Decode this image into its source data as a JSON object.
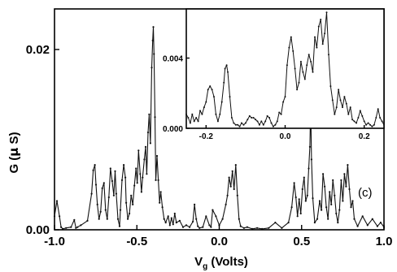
{
  "chart_data": [
    {
      "type": "line",
      "xlabel": {
        "main": "V",
        "sub": "g",
        "rest": " (Volts)"
      },
      "ylabel": {
        "main": "G (",
        "mu": "μ",
        "rest": " S)"
      },
      "panel_label": "(c)",
      "xlim": [
        -1.0,
        1.0
      ],
      "ylim": [
        0.0,
        0.0245
      ],
      "xticks": [
        -1.0,
        -0.5,
        0.0,
        0.5,
        1.0
      ],
      "xtick_labels": [
        "-1.0",
        "-0.5",
        "0.0",
        "0.5",
        "1.0"
      ],
      "yticks": [
        0.0,
        0.02
      ],
      "ytick_labels": [
        "0.00",
        "0.02"
      ],
      "series": [
        {
          "x": [
            -1.0,
            -0.985,
            -0.97,
            -0.96,
            -0.95,
            -0.93,
            -0.9,
            -0.88,
            -0.87,
            -0.86,
            -0.84,
            -0.8,
            -0.775,
            -0.765,
            -0.755,
            -0.748,
            -0.74,
            -0.73,
            -0.72,
            -0.71,
            -0.7,
            -0.69,
            -0.68,
            -0.67,
            -0.66,
            -0.65,
            -0.64,
            -0.632,
            -0.625,
            -0.615,
            -0.605,
            -0.6,
            -0.59,
            -0.58,
            -0.57,
            -0.565,
            -0.555,
            -0.545,
            -0.535,
            -0.525,
            -0.515,
            -0.505,
            -0.498,
            -0.49,
            -0.48,
            -0.472,
            -0.465,
            -0.455,
            -0.447,
            -0.44,
            -0.432,
            -0.425,
            -0.418,
            -0.41,
            -0.404,
            -0.4,
            -0.396,
            -0.39,
            -0.385,
            -0.378,
            -0.37,
            -0.362,
            -0.355,
            -0.345,
            -0.335,
            -0.325,
            -0.31,
            -0.3,
            -0.29,
            -0.28,
            -0.27,
            -0.26,
            -0.24,
            -0.22,
            -0.2,
            -0.18,
            -0.16,
            -0.15,
            -0.14,
            -0.13,
            -0.12,
            -0.1,
            -0.08,
            -0.06,
            -0.05,
            -0.04,
            -0.02,
            0.0,
            0.02,
            0.04,
            0.05,
            0.06,
            0.07,
            0.08,
            0.09,
            0.1,
            0.11,
            0.12,
            0.13,
            0.15,
            0.17,
            0.2,
            0.23,
            0.26,
            0.3,
            0.34,
            0.38,
            0.42,
            0.44,
            0.455,
            0.465,
            0.475,
            0.485,
            0.495,
            0.505,
            0.515,
            0.525,
            0.535,
            0.543,
            0.55,
            0.555,
            0.56,
            0.568,
            0.58,
            0.595,
            0.61,
            0.62,
            0.63,
            0.64,
            0.65,
            0.66,
            0.67,
            0.68,
            0.69,
            0.7,
            0.71,
            0.72,
            0.73,
            0.74,
            0.75,
            0.76,
            0.77,
            0.78,
            0.79,
            0.8,
            0.81,
            0.82,
            0.84,
            0.87,
            0.9,
            0.93,
            0.96,
            0.98,
            1.0
          ],
          "y": [
            0.0015,
            0.0032,
            0.0015,
            0.0003,
            0.0001,
            0.0002,
            0.0003,
            0.0011,
            0.0002,
            0.0003,
            0.0005,
            0.001,
            0.004,
            0.0066,
            0.0072,
            0.005,
            0.0028,
            0.0012,
            0.002,
            0.0046,
            0.0052,
            0.0022,
            0.0012,
            0.0036,
            0.0068,
            0.0054,
            0.0038,
            0.0065,
            0.004,
            0.0012,
            0.0004,
            0.0022,
            0.0055,
            0.0072,
            0.0058,
            0.003,
            0.0012,
            0.0018,
            0.0038,
            0.0028,
            0.0049,
            0.0068,
            0.0052,
            0.0088,
            0.0062,
            0.0042,
            0.0058,
            0.0078,
            0.0092,
            0.0062,
            0.0108,
            0.0128,
            0.0096,
            0.018,
            0.021,
            0.0225,
            0.0195,
            0.0125,
            0.0055,
            0.0082,
            0.0055,
            0.003,
            0.0042,
            0.0025,
            0.0012,
            0.0008,
            0.0015,
            0.0005,
            0.0013,
            0.0006,
            0.0018,
            0.0008,
            0.001,
            0.0003,
            0.0005,
            0.0003,
            0.0009,
            0.0028,
            0.0012,
            0.0004,
            0.0002,
            0.0003,
            0.0015,
            0.0005,
            0.0003,
            0.0022,
            0.0015,
            0.0005,
            0.0012,
            0.0028,
            0.0038,
            0.0058,
            0.0048,
            0.0065,
            0.0045,
            0.0072,
            0.0038,
            0.0012,
            0.0004,
            0.0002,
            0.0003,
            0.0001,
            0.0002,
            0.0001,
            0.0002,
            0.0008,
            0.0002,
            0.0008,
            0.0025,
            0.0052,
            0.0036,
            0.0015,
            0.0034,
            0.0018,
            0.0045,
            0.0058,
            0.0032,
            0.0038,
            0.0068,
            0.0092,
            0.0138,
            0.0078,
            0.0035,
            0.0008,
            0.0012,
            0.0032,
            0.0022,
            0.0062,
            0.0048,
            0.0025,
            0.0012,
            0.0042,
            0.0028,
            0.0055,
            0.0038,
            0.0018,
            0.0008,
            0.0022,
            0.0055,
            0.0032,
            0.0062,
            0.0048,
            0.0072,
            0.0045,
            0.0025,
            0.0032,
            0.0012,
            0.0004,
            0.0015,
            0.0005,
            0.0012,
            0.0004,
            0.0008,
            0.0003
          ]
        }
      ]
    },
    {
      "type": "line",
      "xlim": [
        -0.25,
        0.25
      ],
      "ylim": [
        0.0,
        0.0068
      ],
      "xticks": [
        -0.2,
        0.0,
        0.2
      ],
      "xtick_labels": [
        "-0.2",
        "0.0",
        "0.2"
      ],
      "yticks": [
        0.0,
        0.004
      ],
      "ytick_labels": [
        "0.000",
        "0.004"
      ],
      "series": [
        {
          "x": [
            -0.25,
            -0.245,
            -0.24,
            -0.235,
            -0.23,
            -0.225,
            -0.22,
            -0.215,
            -0.21,
            -0.205,
            -0.2,
            -0.195,
            -0.19,
            -0.185,
            -0.18,
            -0.175,
            -0.17,
            -0.165,
            -0.16,
            -0.155,
            -0.152,
            -0.148,
            -0.145,
            -0.14,
            -0.135,
            -0.13,
            -0.125,
            -0.12,
            -0.115,
            -0.11,
            -0.105,
            -0.1,
            -0.095,
            -0.09,
            -0.085,
            -0.08,
            -0.075,
            -0.07,
            -0.065,
            -0.06,
            -0.055,
            -0.05,
            -0.045,
            -0.04,
            -0.035,
            -0.03,
            -0.025,
            -0.02,
            -0.015,
            -0.01,
            -0.005,
            0.0,
            0.005,
            0.01,
            0.015,
            0.02,
            0.025,
            0.03,
            0.035,
            0.04,
            0.045,
            0.05,
            0.055,
            0.06,
            0.065,
            0.07,
            0.075,
            0.08,
            0.085,
            0.09,
            0.095,
            0.1,
            0.105,
            0.11,
            0.115,
            0.12,
            0.125,
            0.13,
            0.135,
            0.14,
            0.145,
            0.15,
            0.155,
            0.16,
            0.165,
            0.17,
            0.175,
            0.18,
            0.185,
            0.19,
            0.195,
            0.2,
            0.205,
            0.21,
            0.215,
            0.22,
            0.225,
            0.23,
            0.235,
            0.24,
            0.245,
            0.25
          ],
          "y": [
            0.0008,
            0.0006,
            0.0003,
            0.0008,
            0.0004,
            0.0006,
            0.0004,
            0.001,
            0.0008,
            0.0012,
            0.0015,
            0.0022,
            0.0024,
            0.0022,
            0.0018,
            0.0008,
            0.0004,
            0.0008,
            0.0015,
            0.0026,
            0.0034,
            0.0036,
            0.0032,
            0.0018,
            0.0006,
            0.0003,
            0.0002,
            0.0002,
            0.0001,
            0.0003,
            0.0002,
            0.0003,
            0.0005,
            0.0007,
            0.0006,
            0.0006,
            0.0005,
            0.0004,
            0.0002,
            0.0004,
            0.0002,
            0.0004,
            0.0007,
            0.0006,
            0.0003,
            0.0001,
            0.0002,
            0.0004,
            0.0009,
            0.0008,
            0.0015,
            0.0018,
            0.0036,
            0.0046,
            0.0052,
            0.0044,
            0.0034,
            0.0022,
            0.0026,
            0.0038,
            0.0032,
            0.0028,
            0.0036,
            0.0042,
            0.0038,
            0.0032,
            0.0052,
            0.0046,
            0.0058,
            0.0062,
            0.0048,
            0.0054,
            0.0066,
            0.0042,
            0.0024,
            0.0016,
            0.0008,
            0.0012,
            0.0022,
            0.0016,
            0.0012,
            0.0018,
            0.0014,
            0.0008,
            0.0012,
            0.0005,
            0.0004,
            0.0003,
            0.0006,
            0.001,
            0.0007,
            0.0004,
            0.0002,
            0.0003,
            0.0002,
            0.0001,
            0.0002,
            0.0006,
            0.0011,
            0.0006,
            0.0004,
            0.0002
          ]
        }
      ]
    }
  ]
}
